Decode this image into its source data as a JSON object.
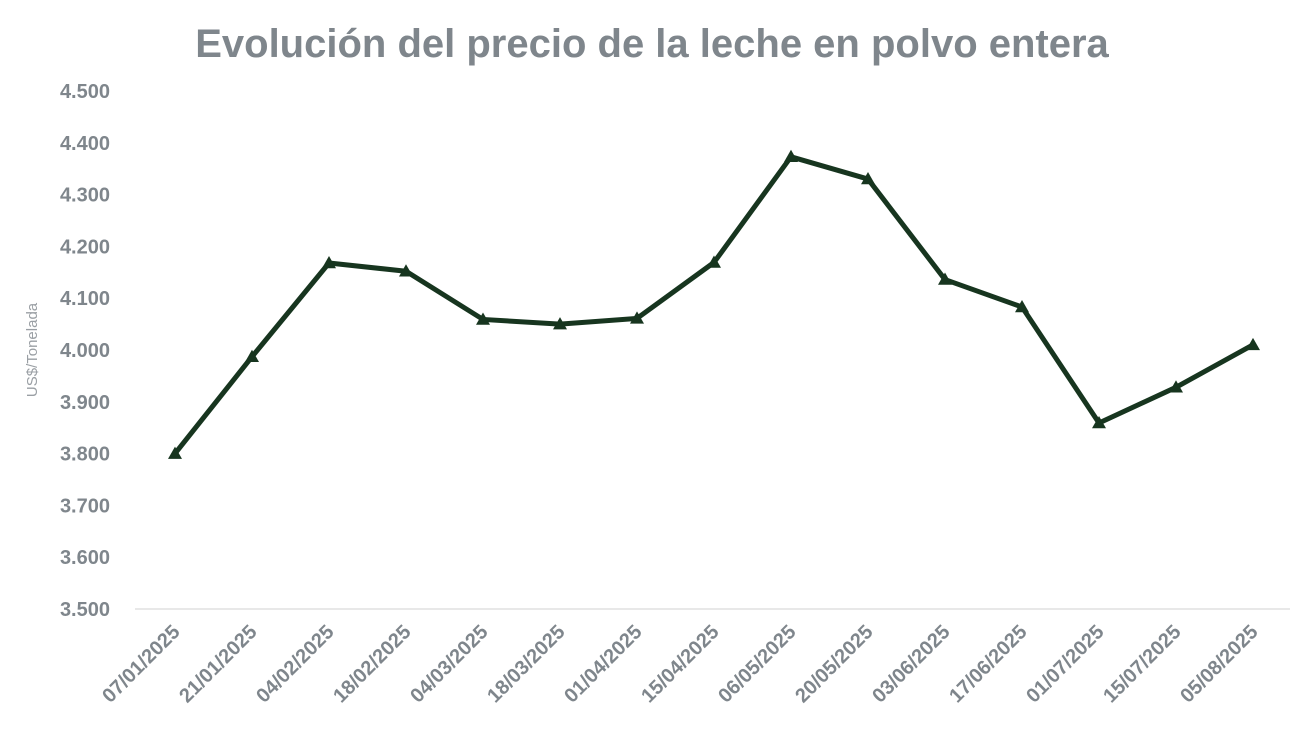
{
  "chart_data": {
    "type": "line",
    "title": "Evolución del precio de la leche en polvo entera",
    "ylabel": "US$/Tonelada",
    "xlabel": "",
    "ylim": [
      3500,
      4500
    ],
    "y_ticks": [
      3500,
      3600,
      3700,
      3800,
      3900,
      4000,
      4100,
      4200,
      4300,
      4400,
      4500
    ],
    "y_tick_labels": [
      "3.500",
      "3.600",
      "3.700",
      "3.800",
      "3.900",
      "4.000",
      "4.100",
      "4.200",
      "4.300",
      "4.400",
      "4.500"
    ],
    "categories": [
      "07/01/2025",
      "21/01/2025",
      "04/02/2025",
      "18/02/2025",
      "04/03/2025",
      "18/03/2025",
      "01/04/2025",
      "15/04/2025",
      "06/05/2025",
      "20/05/2025",
      "03/06/2025",
      "17/06/2025",
      "01/07/2025",
      "15/07/2025",
      "05/08/2025"
    ],
    "series": [
      {
        "values": [
          3800,
          3987,
          4168,
          4152,
          4059,
          4050,
          4061,
          4169,
          4373,
          4330,
          4136,
          4083,
          3859,
          3928,
          4010
        ],
        "color": "#17351f",
        "marker": "triangle"
      }
    ],
    "grid": false,
    "legend": "none"
  }
}
